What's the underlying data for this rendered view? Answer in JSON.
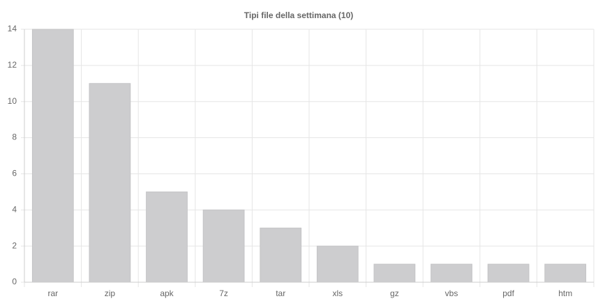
{
  "chart_data": {
    "type": "bar",
    "title": "Tipi file della settimana (10)",
    "categories": [
      "rar",
      "zip",
      "apk",
      "7z",
      "tar",
      "xls",
      "gz",
      "vbs",
      "pdf",
      "htm"
    ],
    "values": [
      14,
      11,
      5,
      4,
      3,
      2,
      1,
      1,
      1,
      1
    ],
    "color": "#cdcdcf",
    "ylim": [
      0,
      14
    ],
    "yticks": [
      0,
      2,
      4,
      6,
      8,
      10,
      12,
      14
    ],
    "grid": true
  }
}
